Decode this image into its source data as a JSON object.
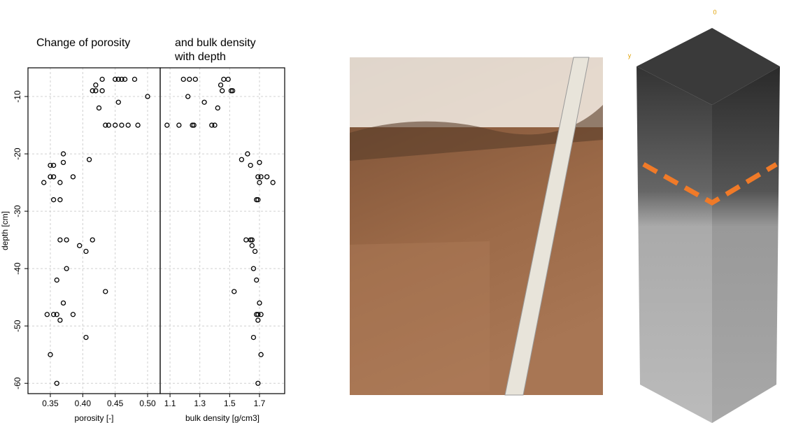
{
  "chart_data": [
    {
      "type": "scatter",
      "title": "Change of porosity",
      "xlabel": "porosity [-]",
      "ylabel": "depth [cm]",
      "x": [
        0.43,
        0.45,
        0.455,
        0.46,
        0.465,
        0.48,
        0.42,
        0.415,
        0.42,
        0.43,
        0.5,
        0.455,
        0.425,
        0.435,
        0.44,
        0.45,
        0.46,
        0.47,
        0.485,
        0.37,
        0.41,
        0.37,
        0.35,
        0.355,
        0.35,
        0.355,
        0.385,
        0.34,
        0.365,
        0.355,
        0.365,
        0.365,
        0.375,
        0.415,
        0.395,
        0.405,
        0.375,
        0.36,
        0.435,
        0.37,
        0.345,
        0.355,
        0.36,
        0.385,
        0.365,
        0.405,
        0.35,
        0.36
      ],
      "y": [
        -7,
        -7,
        -7,
        -7,
        -7,
        -7,
        -8,
        -9,
        -9,
        -9,
        -10,
        -11,
        -12,
        -15,
        -15,
        -15,
        -15,
        -15,
        -15,
        -20,
        -21,
        -21.5,
        -22,
        -22,
        -24,
        -24,
        -24,
        -25,
        -25,
        -28,
        -28,
        -35,
        -35,
        -35,
        -36,
        -37,
        -40,
        -42,
        -44,
        -46,
        -48,
        -48,
        -48,
        -48,
        -49,
        -52,
        -55,
        -60
      ],
      "xlim": [
        0.3155,
        0.5194
      ],
      "ylim": [
        -61.8,
        -5.0
      ],
      "xticks": [
        0.35,
        {
          "value": 0.4,
          "label": "0.40"
        },
        0.45,
        {
          "value": 0.5,
          "label": "0.50"
        }
      ],
      "yticks": [
        -10,
        -20,
        -30,
        -40,
        -50,
        -60
      ],
      "grid": true,
      "color": "#000000"
    },
    {
      "type": "scatter",
      "title": "and bulk density with depth",
      "xlabel": "bulk density [g/cm3]",
      "x": [
        1.19,
        1.23,
        1.27,
        1.46,
        1.49,
        1.44,
        1.45,
        1.51,
        1.52,
        1.22,
        1.33,
        1.42,
        1.08,
        1.16,
        1.25,
        1.26,
        1.38,
        1.4,
        1.62,
        1.58,
        1.7,
        1.64,
        1.69,
        1.71,
        1.75,
        1.7,
        1.79,
        1.68,
        1.69,
        1.61,
        1.64,
        1.65,
        1.65,
        1.67,
        1.66,
        1.68,
        1.53,
        1.7,
        1.68,
        1.69,
        1.71,
        1.69,
        1.66,
        1.71,
        1.69
      ],
      "y": [
        -7,
        -7,
        -7,
        -7,
        -7,
        -8,
        -9,
        -9,
        -9,
        -10,
        -11,
        -12,
        -15,
        -15,
        -15,
        -15,
        -15,
        -15,
        -20,
        -21,
        -21.5,
        -22,
        -24,
        -24,
        -24,
        -25,
        -25,
        -28,
        -28,
        -35,
        -35,
        -35,
        -36,
        -37,
        -40,
        -42,
        -44,
        -46,
        -48,
        -48,
        -48,
        -49,
        -52,
        -55,
        -60
      ],
      "xlim": [
        1.034,
        1.869
      ],
      "ylim": [
        -61.8,
        -5.0
      ],
      "xticks": [
        1.1,
        1.3,
        1.5,
        1.7
      ],
      "grid": true,
      "color": "#000000"
    }
  ],
  "image_labels": [
    "0",
    "y"
  ]
}
